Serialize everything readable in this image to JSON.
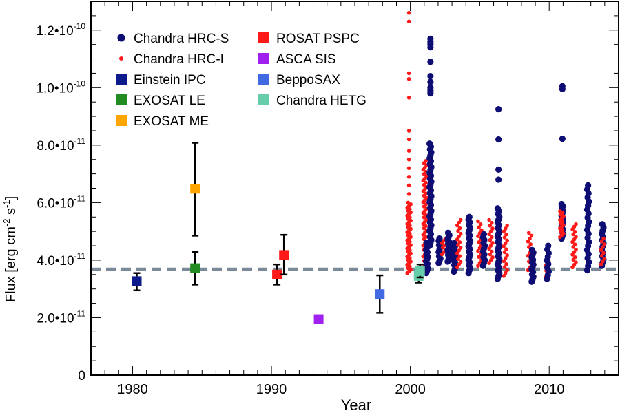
{
  "chart_data": {
    "type": "scatter",
    "xlabel": "Year",
    "ylabel_parts": [
      "Flux [erg cm",
      "-2",
      " s",
      "-1",
      "]"
    ],
    "xlim": [
      1977,
      2015
    ],
    "ylim": [
      0,
      1.3e-10
    ],
    "x_ticks": [
      {
        "value": 1980,
        "label": "1980"
      },
      {
        "value": 1990,
        "label": "1990"
      },
      {
        "value": 2000,
        "label": "2000"
      },
      {
        "value": 2010,
        "label": "2010"
      }
    ],
    "y_ticks": [
      {
        "value": 0,
        "mant": "0",
        "exp": ""
      },
      {
        "value": 2e-11,
        "mant": "2.0•10",
        "exp": "-11"
      },
      {
        "value": 4e-11,
        "mant": "4.0•10",
        "exp": "-11"
      },
      {
        "value": 6e-11,
        "mant": "6.0•10",
        "exp": "-11"
      },
      {
        "value": 8e-11,
        "mant": "8.0•10",
        "exp": "-11"
      },
      {
        "value": 1e-10,
        "mant": "1.0•10",
        "exp": "-10"
      },
      {
        "value": 1.2e-10,
        "mant": "1.2•10",
        "exp": "-10"
      }
    ],
    "reference_line": {
      "y": 3.68e-11,
      "color": "#7b8a99"
    },
    "legend_position": "top-left",
    "series": [
      {
        "name": "Chandra HRC-S",
        "marker": "circle",
        "color": "#0d0d73"
      },
      {
        "name": "Chandra HRC-I",
        "marker": "dot",
        "color": "#ff1a1a"
      },
      {
        "name": "Einstein IPC",
        "marker": "square",
        "color": "#0d1a8c",
        "points": [
          {
            "x": 1980.3,
            "y": 3.27e-11,
            "ylo": 2.95e-11,
            "yhi": 3.55e-11
          }
        ]
      },
      {
        "name": "EXOSAT LE",
        "marker": "square",
        "color": "#228b22",
        "points": [
          {
            "x": 1984.5,
            "y": 3.72e-11,
            "ylo": 3.15e-11,
            "yhi": 4.28e-11
          }
        ]
      },
      {
        "name": "EXOSAT ME",
        "marker": "square",
        "color": "#ffa500",
        "points": [
          {
            "x": 1984.5,
            "y": 6.48e-11,
            "ylo": 4.85e-11,
            "yhi": 8.08e-11
          }
        ]
      },
      {
        "name": "ROSAT PSPC",
        "marker": "square",
        "color": "#ff1a1a",
        "points": [
          {
            "x": 1990.4,
            "y": 3.5e-11,
            "ylo": 3.15e-11,
            "yhi": 3.85e-11
          },
          {
            "x": 1990.9,
            "y": 4.18e-11,
            "ylo": 3.5e-11,
            "yhi": 4.88e-11
          }
        ]
      },
      {
        "name": "ASCA SIS",
        "marker": "square",
        "color": "#a020f0",
        "points": [
          {
            "x": 1993.4,
            "y": 1.95e-11,
            "ylo": 1.88e-11,
            "yhi": 2.02e-11
          }
        ]
      },
      {
        "name": "BeppoSAX",
        "marker": "square",
        "color": "#4169e1",
        "points": [
          {
            "x": 1997.8,
            "y": 2.82e-11,
            "ylo": 2.17e-11,
            "yhi": 3.47e-11
          }
        ]
      },
      {
        "name": "Chandra HETG",
        "marker": "square",
        "color": "#66cdaa",
        "points": [
          {
            "x": 2000.6,
            "y": 3.45e-11,
            "ylo": 3.22e-11,
            "yhi": 3.7e-11
          },
          {
            "x": 2000.7,
            "y": 3.62e-11,
            "ylo": 3.4e-11,
            "yhi": 3.85e-11
          }
        ]
      }
    ],
    "clusters": [
      {
        "series": "Chandra HRC-I",
        "x": 1999.9,
        "ymin": 3.55e-11,
        "ymax": 6e-11,
        "n": 44,
        "outliers": [
          1.26e-10,
          1.23e-10,
          1.05e-10,
          1.03e-10,
          9.65e-11,
          8.5e-11,
          8.2e-11,
          7.8e-11,
          7.5e-11,
          7.2e-11,
          6.9e-11,
          6.6e-11,
          6.3e-11
        ]
      },
      {
        "series": "Chandra HRC-I",
        "x": 2001.05,
        "ymin": 3.75e-11,
        "ymax": 7.45e-11,
        "n": 50,
        "outliers": []
      },
      {
        "series": "Chandra HRC-S",
        "x": 2001.2,
        "ymin": 3.55e-11,
        "ymax": 4.6e-11,
        "n": 14,
        "outliers": []
      },
      {
        "series": "Chandra HRC-S",
        "x": 2001.45,
        "ymin": 4.5e-11,
        "ymax": 8.05e-11,
        "n": 36,
        "outliers": [
          1.17e-10,
          1.16e-10,
          1.15e-10,
          1.14e-10,
          1.09e-10,
          1.04e-10,
          1.02e-10,
          1e-10,
          9.9e-11,
          9.8e-11
        ]
      },
      {
        "series": "Chandra HRC-S",
        "x": 2002.1,
        "ymin": 3.9e-11,
        "ymax": 4.75e-11,
        "n": 12,
        "outliers": []
      },
      {
        "series": "Chandra HRC-I",
        "x": 2002.4,
        "ymin": 4.2e-11,
        "ymax": 4.75e-11,
        "n": 8,
        "outliers": []
      },
      {
        "series": "Chandra HRC-S",
        "x": 2002.75,
        "ymin": 3.95e-11,
        "ymax": 4.95e-11,
        "n": 14,
        "outliers": []
      },
      {
        "series": "Chandra HRC-S",
        "x": 2003.2,
        "ymin": 3.6e-11,
        "ymax": 4.6e-11,
        "n": 14,
        "outliers": []
      },
      {
        "series": "Chandra HRC-I",
        "x": 2003.5,
        "ymin": 3.75e-11,
        "ymax": 5.4e-11,
        "n": 18,
        "outliers": []
      },
      {
        "series": "Chandra HRC-S",
        "x": 2004.25,
        "ymin": 3.55e-11,
        "ymax": 5.5e-11,
        "n": 22,
        "outliers": []
      },
      {
        "series": "Chandra HRC-I",
        "x": 2005.0,
        "ymin": 3.8e-11,
        "ymax": 5.35e-11,
        "n": 16,
        "outliers": []
      },
      {
        "series": "Chandra HRC-S",
        "x": 2005.3,
        "ymin": 3.8e-11,
        "ymax": 4.9e-11,
        "n": 12,
        "outliers": []
      },
      {
        "series": "Chandra HRC-I",
        "x": 2005.8,
        "ymin": 3.9e-11,
        "ymax": 5.4e-11,
        "n": 16,
        "outliers": []
      },
      {
        "series": "Chandra HRC-S",
        "x": 2006.35,
        "ymin": 3.35e-11,
        "ymax": 5.8e-11,
        "n": 26,
        "outliers": [
          9.25e-11,
          8.2e-11,
          7.15e-11,
          6.8e-11
        ]
      },
      {
        "series": "Chandra HRC-I",
        "x": 2006.85,
        "ymin": 3.45e-11,
        "ymax": 5.2e-11,
        "n": 18,
        "outliers": []
      },
      {
        "series": "Chandra HRC-I",
        "x": 2008.6,
        "ymin": 3.65e-11,
        "ymax": 4.95e-11,
        "n": 14,
        "outliers": []
      },
      {
        "series": "Chandra HRC-S",
        "x": 2008.8,
        "ymin": 3.25e-11,
        "ymax": 4.35e-11,
        "n": 14,
        "outliers": []
      },
      {
        "series": "Chandra HRC-I",
        "x": 2009.85,
        "ymin": 3.4e-11,
        "ymax": 3.95e-11,
        "n": 8,
        "outliers": []
      },
      {
        "series": "Chandra HRC-S",
        "x": 2009.9,
        "ymin": 3.35e-11,
        "ymax": 4.5e-11,
        "n": 10,
        "outliers": []
      },
      {
        "series": "Chandra HRC-S",
        "x": 2010.95,
        "ymin": 4.75e-11,
        "ymax": 5.95e-11,
        "n": 16,
        "outliers": [
          1.005e-10,
          9.95e-11,
          8.22e-11
        ]
      },
      {
        "series": "Chandra HRC-I",
        "x": 2010.9,
        "ymin": 4.8e-11,
        "ymax": 5.7e-11,
        "n": 16,
        "outliers": []
      },
      {
        "series": "Chandra HRC-I",
        "x": 2011.8,
        "ymin": 3.75e-11,
        "ymax": 5.25e-11,
        "n": 18,
        "outliers": []
      },
      {
        "series": "Chandra HRC-S",
        "x": 2012.8,
        "ymin": 3.65e-11,
        "ymax": 6.6e-11,
        "n": 22,
        "outliers": []
      },
      {
        "series": "Chandra HRC-S",
        "x": 2013.85,
        "ymin": 3.8e-11,
        "ymax": 5.25e-11,
        "n": 14,
        "outliers": []
      },
      {
        "series": "Chandra HRC-I",
        "x": 2013.85,
        "ymin": 3.85e-11,
        "ymax": 4.75e-11,
        "n": 10,
        "outliers": []
      }
    ]
  }
}
